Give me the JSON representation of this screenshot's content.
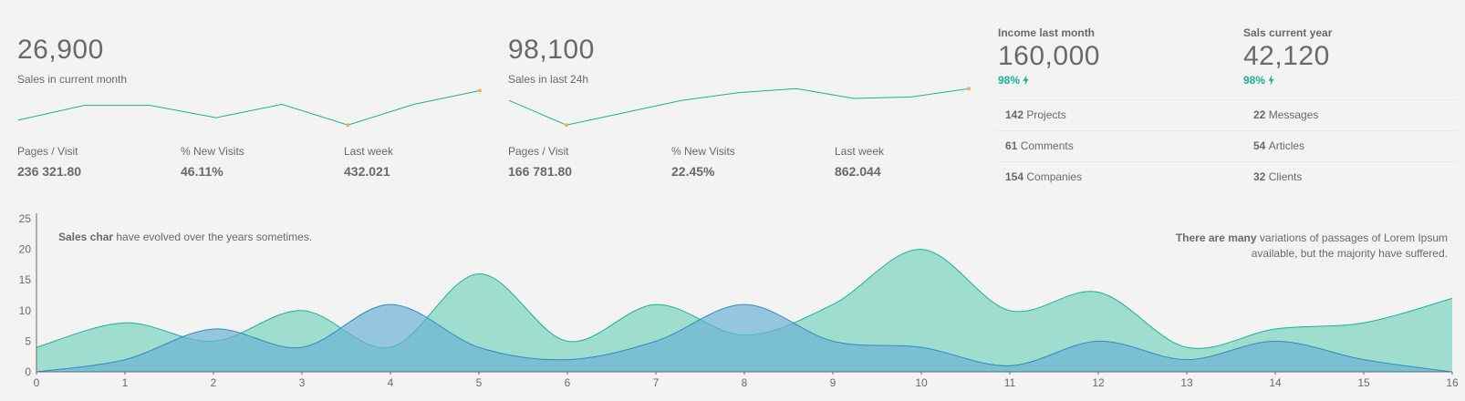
{
  "panel1": {
    "value": "26,900",
    "caption": "Sales in current month",
    "sparkline": [
      {
        "x": 0,
        "y": 3.0
      },
      {
        "x": 1,
        "y": 6.0
      },
      {
        "x": 2,
        "y": 6.0
      },
      {
        "x": 3,
        "y": 3.5
      },
      {
        "x": 4,
        "y": 6.2
      },
      {
        "x": 5,
        "y": 2.0
      },
      {
        "x": 6,
        "y": 6.2
      },
      {
        "x": 7,
        "y": 9.0
      }
    ],
    "sparkline_range": [
      0,
      10
    ],
    "highlight_points": [
      5,
      7
    ],
    "stats": [
      {
        "label": "Pages / Visit",
        "value": "236 321.80"
      },
      {
        "label": "% New Visits",
        "value": "46.11%"
      },
      {
        "label": "Last week",
        "value": "432.021"
      }
    ]
  },
  "panel2": {
    "value": "98,100",
    "caption": "Sales in last 24h",
    "sparkline": [
      {
        "x": 0,
        "y": 7.0
      },
      {
        "x": 1,
        "y": 2.0
      },
      {
        "x": 2,
        "y": 4.5
      },
      {
        "x": 3,
        "y": 7.0
      },
      {
        "x": 4,
        "y": 8.6
      },
      {
        "x": 5,
        "y": 9.4
      },
      {
        "x": 6,
        "y": 7.4
      },
      {
        "x": 7,
        "y": 7.7
      },
      {
        "x": 8,
        "y": 9.4
      }
    ],
    "sparkline_range": [
      0,
      10
    ],
    "highlight_points": [
      1,
      8
    ],
    "stats": [
      {
        "label": "Pages / Visit",
        "value": "166 781.80"
      },
      {
        "label": "% New Visits",
        "value": "22.45%"
      },
      {
        "label": "Last week",
        "value": "862.044"
      }
    ]
  },
  "summary": {
    "income": {
      "title": "Income last month",
      "value": "160,000",
      "pct": "98%"
    },
    "sales_year": {
      "title": "Sals current year",
      "value": "42,120",
      "pct": "98%"
    },
    "rows": [
      [
        {
          "count": "142",
          "label": "Projects"
        },
        {
          "count": "22",
          "label": "Messages"
        }
      ],
      [
        {
          "count": "61",
          "label": "Comments"
        },
        {
          "count": "54",
          "label": "Articles"
        }
      ],
      [
        {
          "count": "154",
          "label": "Companies"
        },
        {
          "count": "32",
          "label": "Clients"
        }
      ]
    ]
  },
  "notes": {
    "left_bold": "Sales char",
    "left_rest": " have evolved over the years sometimes.",
    "right_bold": "There are many",
    "right_rest1": " variations of passages of Lorem Ipsum",
    "right_rest2": "available, but the majority have suffered."
  },
  "colors": {
    "accent": "#1ab394",
    "teal_fill": "#9fdecf",
    "teal_line": "#1ab394",
    "blue_fill": "#6bb4d3",
    "blue_line": "#2f8bc4",
    "marker": "#f8ac59"
  },
  "chart_data": {
    "type": "area",
    "x": [
      0,
      1,
      2,
      3,
      4,
      5,
      6,
      7,
      8,
      9,
      10,
      11,
      12,
      13,
      14,
      15,
      16
    ],
    "xlim": [
      0,
      16
    ],
    "ylim": [
      0,
      25
    ],
    "yticks": [
      0,
      5,
      10,
      15,
      20,
      25
    ],
    "xticks": [
      0,
      1,
      2,
      3,
      4,
      5,
      6,
      7,
      8,
      9,
      10,
      11,
      12,
      13,
      14,
      15,
      16
    ],
    "smooth": true,
    "grid": false,
    "series": [
      {
        "color_key": "teal",
        "points": [
          [
            0,
            4
          ],
          [
            1,
            8
          ],
          [
            2,
            5
          ],
          [
            3,
            10
          ],
          [
            4,
            4
          ],
          [
            5,
            16
          ],
          [
            6,
            5
          ],
          [
            7,
            11
          ],
          [
            8,
            6
          ],
          [
            9,
            11
          ],
          [
            10,
            20
          ],
          [
            11,
            10
          ],
          [
            12,
            13
          ],
          [
            13,
            4
          ],
          [
            14,
            7
          ],
          [
            15,
            8
          ],
          [
            16,
            12
          ]
        ]
      },
      {
        "color_key": "blue",
        "points": [
          [
            0,
            0
          ],
          [
            1,
            2
          ],
          [
            2,
            7
          ],
          [
            3,
            4
          ],
          [
            4,
            11
          ],
          [
            5,
            4
          ],
          [
            6,
            2
          ],
          [
            7,
            5
          ],
          [
            8,
            11
          ],
          [
            9,
            5
          ],
          [
            10,
            4
          ],
          [
            11,
            1
          ],
          [
            12,
            5
          ],
          [
            13,
            2
          ],
          [
            14,
            5
          ],
          [
            15,
            2
          ],
          [
            16,
            0
          ]
        ]
      }
    ]
  }
}
